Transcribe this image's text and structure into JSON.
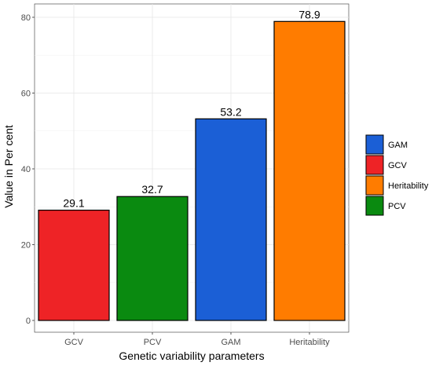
{
  "chart_data": {
    "type": "bar",
    "categories": [
      "GCV",
      "PCV",
      "GAM",
      "Heritability"
    ],
    "values": [
      29.1,
      32.7,
      53.2,
      78.9
    ],
    "data_labels": [
      "29.1",
      "32.7",
      "53.2",
      "78.9"
    ],
    "colors": {
      "GCV": "#ee2326",
      "PCV": "#0a8a10",
      "GAM": "#1b5fd6",
      "Heritability": "#ff7c00"
    },
    "title": "",
    "xlabel": "Genetic variability parameters",
    "ylabel": "Value in Per cent",
    "ylim": [
      0,
      82
    ],
    "yticks": [
      0,
      20,
      40,
      60,
      80
    ],
    "grid": true,
    "legend": {
      "placement": "right",
      "entries": [
        "GAM",
        "GCV",
        "Heritability",
        "PCV"
      ]
    }
  }
}
